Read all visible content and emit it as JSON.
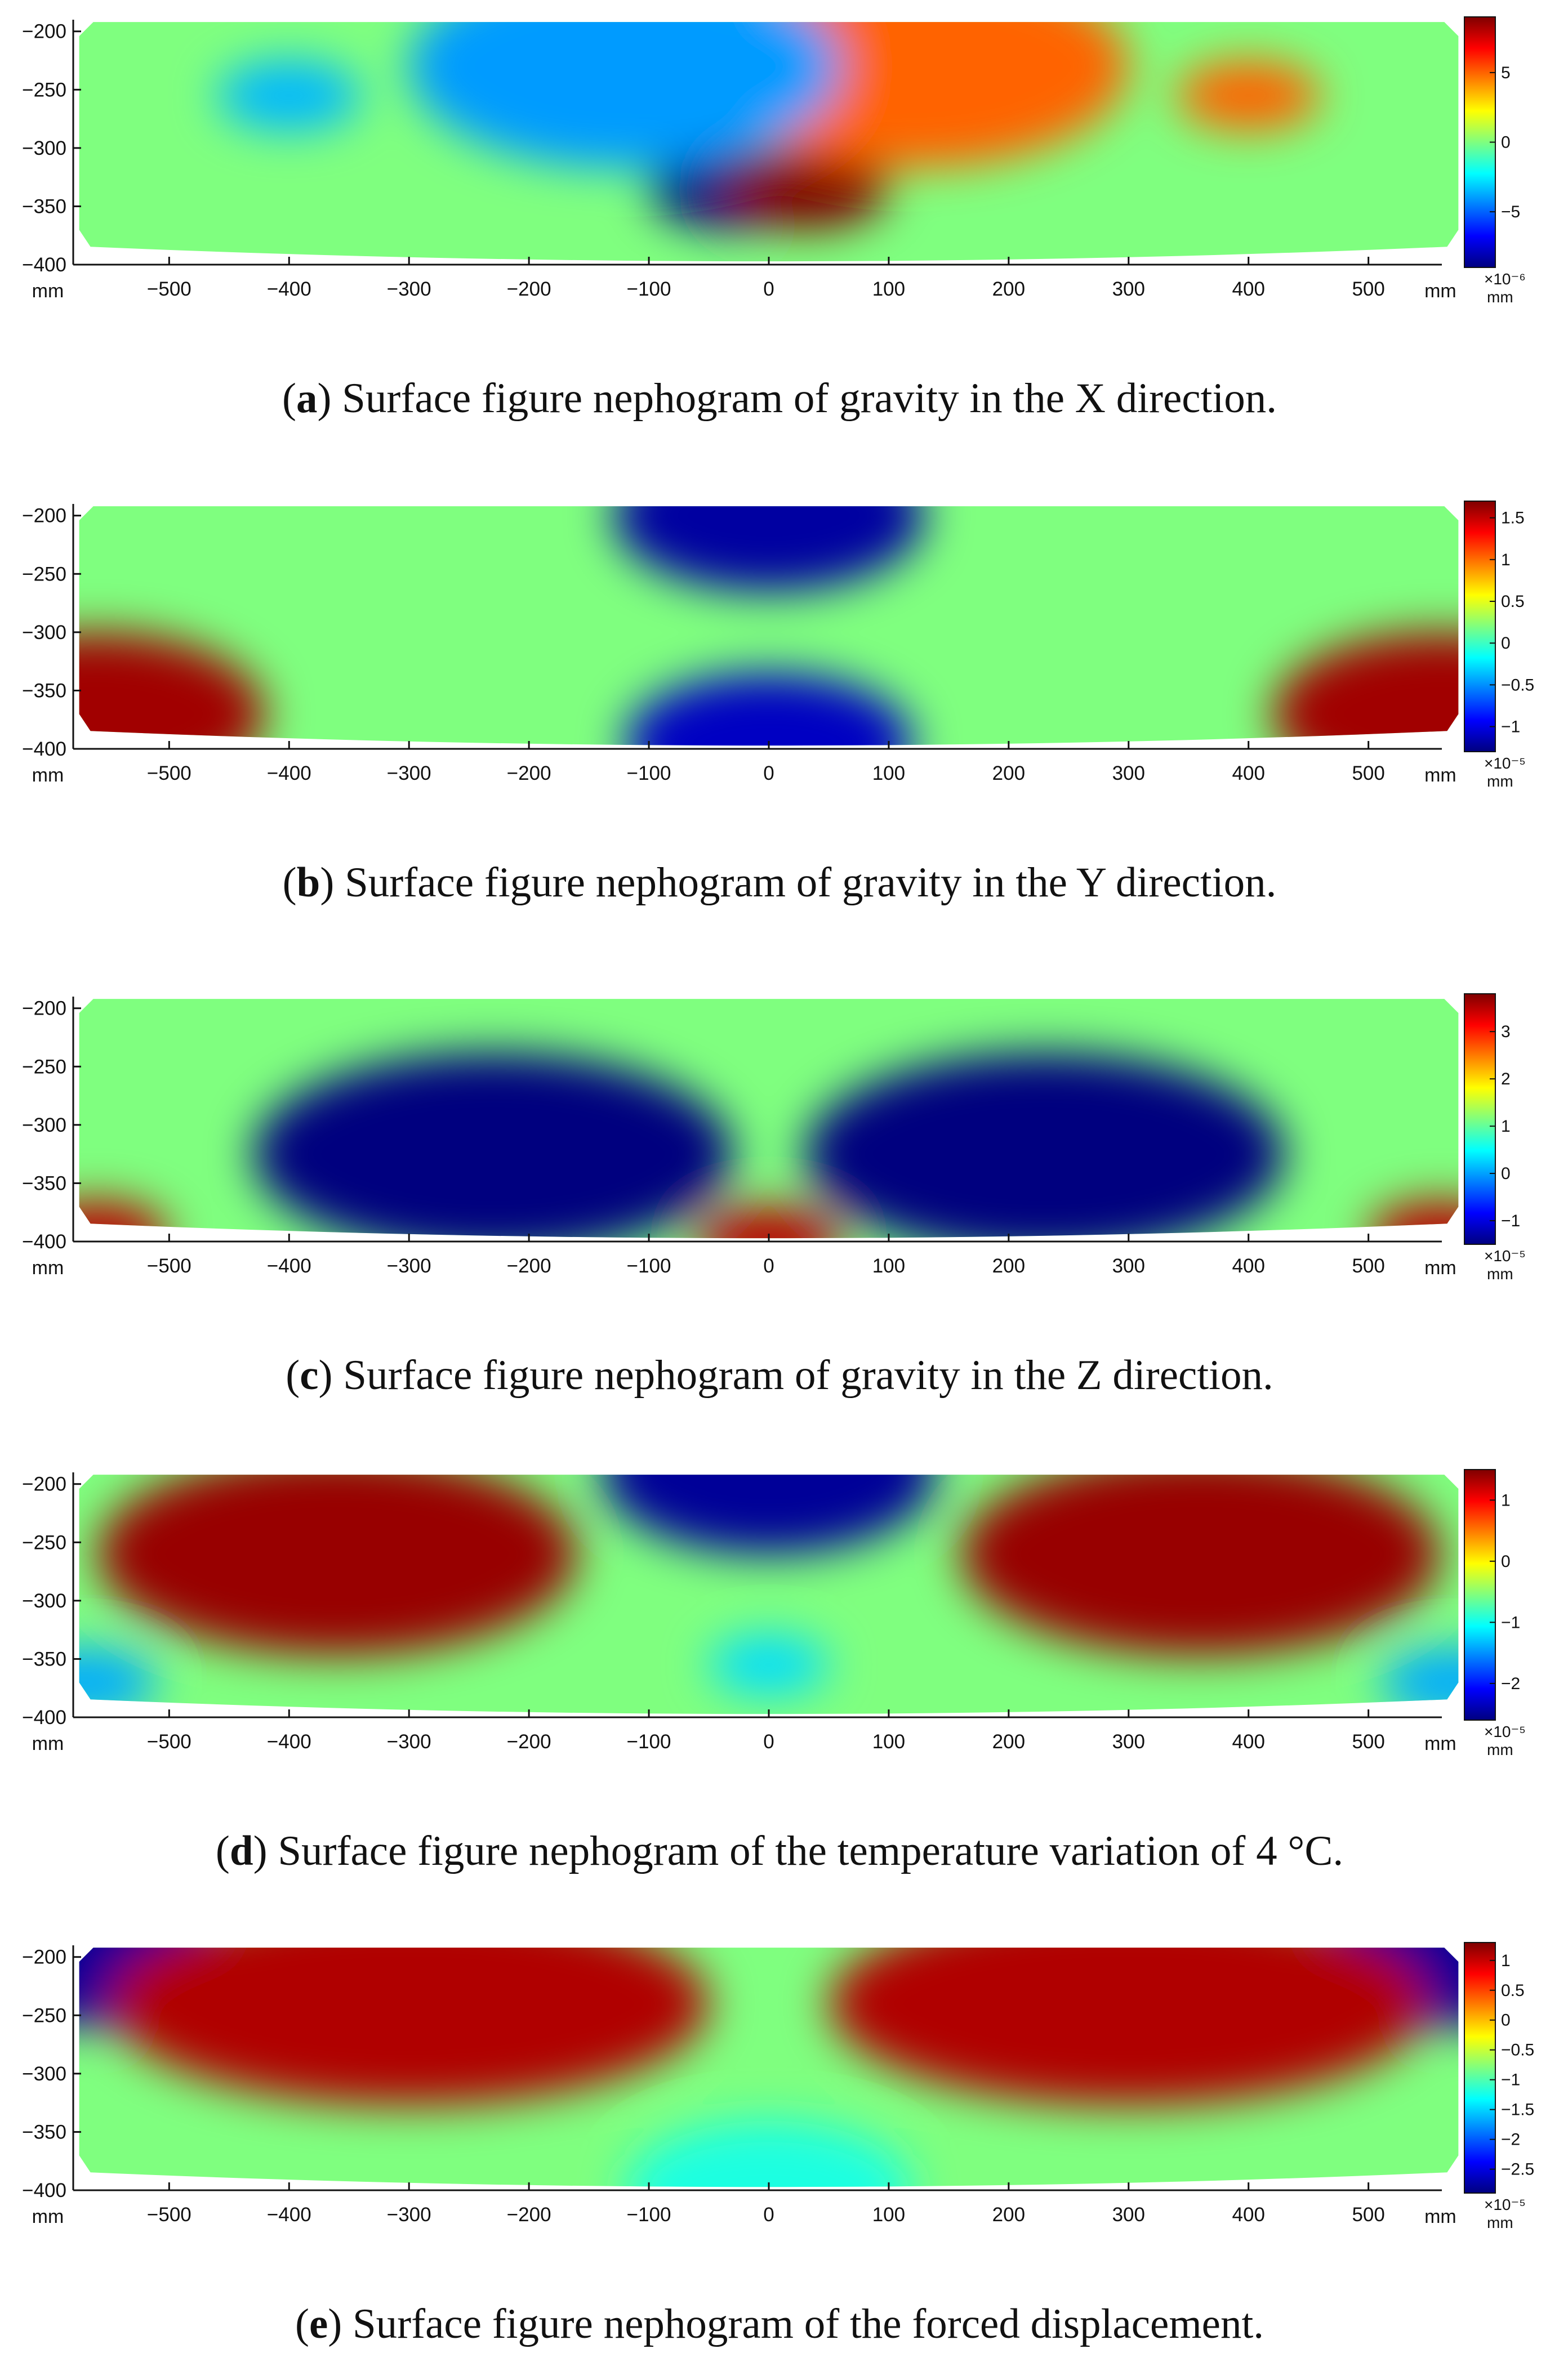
{
  "x_unit": "mm",
  "y_unit_label": "mm",
  "x_ticks": [
    "−500",
    "−400",
    "−300",
    "−200",
    "−100",
    "0",
    "100",
    "200",
    "300",
    "400",
    "500"
  ],
  "y_ticks": [
    "−200",
    "−250",
    "−300",
    "−350",
    "−400"
  ],
  "colors": {
    "jet": [
      "#00007f",
      "#0000ff",
      "#007fff",
      "#00ffff",
      "#7fff7f",
      "#ffff00",
      "#ff7f00",
      "#ff0000",
      "#7f0000"
    ]
  },
  "chart_data": [
    {
      "type": "heatmap",
      "panel_letter": "a",
      "caption": "Surface figure nephogram of gravity in the X direction.",
      "xlim": [
        -580,
        580
      ],
      "ylim": [
        -400,
        -190
      ],
      "colorbar": {
        "ticks": [
          "5",
          "0",
          "−5"
        ],
        "tick_values": [
          5,
          0,
          -5
        ],
        "range": [
          -9,
          9
        ],
        "exponent": "×10⁻⁶",
        "unit": "mm"
      },
      "hotspots": [
        {
          "x": -30,
          "y": -335,
          "value": -9,
          "r": 70
        },
        {
          "x": 30,
          "y": -335,
          "value": 9,
          "r": 70
        },
        {
          "x": -400,
          "y": -255,
          "value": -3.5,
          "r": 60
        },
        {
          "x": 400,
          "y": -255,
          "value": 5,
          "r": 60
        },
        {
          "x": 120,
          "y": -230,
          "value": 5,
          "r": 180
        },
        {
          "x": -120,
          "y": -230,
          "value": -4,
          "r": 180
        }
      ]
    },
    {
      "type": "heatmap",
      "panel_letter": "b",
      "caption": "Surface figure nephogram of gravity in the Y direction.",
      "xlim": [
        -580,
        580
      ],
      "ylim": [
        -400,
        -190
      ],
      "colorbar": {
        "ticks": [
          "1.5",
          "1",
          "0.5",
          "0",
          "−0.5",
          "−1"
        ],
        "tick_values": [
          1.5,
          1,
          0.5,
          0,
          -0.5,
          -1
        ],
        "range": [
          -1.3,
          1.7
        ],
        "exponent": "×10⁻⁵",
        "unit": "mm"
      },
      "hotspots": [
        {
          "x": -560,
          "y": -370,
          "value": 1.6,
          "r": 140
        },
        {
          "x": 560,
          "y": -370,
          "value": 1.6,
          "r": 140
        },
        {
          "x": 0,
          "y": -200,
          "value": -1.2,
          "r": 130
        },
        {
          "x": 0,
          "y": -395,
          "value": -1.1,
          "r": 120
        }
      ]
    },
    {
      "type": "heatmap",
      "panel_letter": "c",
      "caption": "Surface figure nephogram of gravity in the Z direction.",
      "xlim": [
        -580,
        580
      ],
      "ylim": [
        -400,
        -190
      ],
      "colorbar": {
        "ticks": [
          "3",
          "2",
          "1",
          "0",
          "−1"
        ],
        "tick_values": [
          3,
          2,
          1,
          0,
          -1
        ],
        "range": [
          -1.5,
          3.8
        ],
        "exponent": "×10⁻⁵",
        "unit": "mm"
      },
      "hotspots": [
        {
          "x": -230,
          "y": -325,
          "value": -1.5,
          "r": 200
        },
        {
          "x": 230,
          "y": -325,
          "value": -1.5,
          "r": 200
        },
        {
          "x": 0,
          "y": -400,
          "value": 3.5,
          "r": 60
        },
        {
          "x": -560,
          "y": -395,
          "value": 3.5,
          "r": 60
        },
        {
          "x": 560,
          "y": -395,
          "value": 3.5,
          "r": 60
        }
      ]
    },
    {
      "type": "heatmap",
      "panel_letter": "d",
      "caption": "Surface figure nephogram of the temperature variation of 4 °C.",
      "xlim": [
        -580,
        580
      ],
      "ylim": [
        -400,
        -190
      ],
      "colorbar": {
        "ticks": [
          "1",
          "0",
          "−1",
          "−2"
        ],
        "tick_values": [
          1,
          0,
          -1,
          -2
        ],
        "range": [
          -2.6,
          1.5
        ],
        "exponent": "×10⁻⁵",
        "unit": "mm"
      },
      "hotspots": [
        {
          "x": -360,
          "y": -260,
          "value": 1.4,
          "r": 200
        },
        {
          "x": 360,
          "y": -260,
          "value": 1.4,
          "r": 200
        },
        {
          "x": 0,
          "y": -190,
          "value": -2.5,
          "r": 140
        },
        {
          "x": 0,
          "y": -355,
          "value": -1.2,
          "r": 50
        },
        {
          "x": -570,
          "y": -370,
          "value": -1.4,
          "r": 60
        },
        {
          "x": 570,
          "y": -370,
          "value": -1.4,
          "r": 60
        }
      ]
    },
    {
      "type": "heatmap",
      "panel_letter": "e",
      "caption": "Surface figure nephogram of the forced displacement.",
      "xlim": [
        -580,
        580
      ],
      "ylim": [
        -400,
        -190
      ],
      "colorbar": {
        "ticks": [
          "1",
          "0.5",
          "0",
          "−0.5",
          "−1",
          "−1.5",
          "−2",
          "−2.5"
        ],
        "tick_values": [
          1,
          0.5,
          0,
          -0.5,
          -1,
          -1.5,
          -2,
          -2.5
        ],
        "range": [
          -2.9,
          1.3
        ],
        "exponent": "×10⁻⁵",
        "unit": "mm"
      },
      "hotspots": [
        {
          "x": -570,
          "y": -200,
          "value": -2.8,
          "r": 120
        },
        {
          "x": 570,
          "y": -200,
          "value": -2.8,
          "r": 120
        },
        {
          "x": 0,
          "y": -400,
          "value": -1.2,
          "r": 120
        },
        {
          "x": -300,
          "y": -240,
          "value": 1.1,
          "r": 250
        },
        {
          "x": 300,
          "y": -240,
          "value": 1.1,
          "r": 250
        }
      ]
    }
  ]
}
